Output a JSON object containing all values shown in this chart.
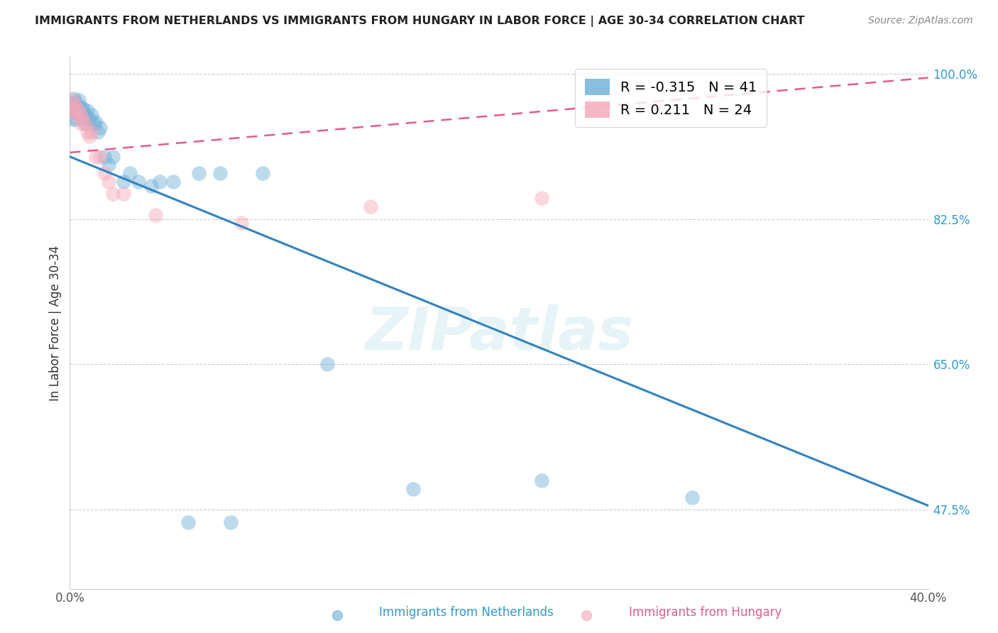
{
  "title": "IMMIGRANTS FROM NETHERLANDS VS IMMIGRANTS FROM HUNGARY IN LABOR FORCE | AGE 30-34 CORRELATION CHART",
  "source": "Source: ZipAtlas.com",
  "xlabel_bottom": "Immigrants from Netherlands",
  "xlabel_bottom2": "Immigrants from Hungary",
  "ylabel": "In Labor Force | Age 30-34",
  "xlim": [
    0.0,
    0.4
  ],
  "ylim": [
    0.38,
    1.02
  ],
  "xticks": [
    0.0,
    0.4
  ],
  "xtick_labels": [
    "0.0%",
    "40.0%"
  ],
  "ytick_positions": [
    0.475,
    0.65,
    0.825,
    1.0
  ],
  "ytick_labels": [
    "47.5%",
    "65.0%",
    "82.5%",
    "100.0%"
  ],
  "legend_R_blue": "-0.315",
  "legend_N_blue": "41",
  "legend_R_pink": " 0.211",
  "legend_N_pink": "24",
  "blue_color": "#6baed6",
  "pink_color": "#f4a7b9",
  "blue_line_color": "#3182bd",
  "pink_line_color": "#e05c8a",
  "watermark": "ZIPatlas",
  "background_color": "#ffffff",
  "blue_scatter_x": [
    0.001,
    0.001,
    0.001,
    0.002,
    0.002,
    0.003,
    0.003,
    0.003,
    0.004,
    0.004,
    0.005,
    0.005,
    0.006,
    0.006,
    0.007,
    0.007,
    0.008,
    0.009,
    0.01,
    0.011,
    0.012,
    0.013,
    0.014,
    0.016,
    0.018,
    0.02,
    0.025,
    0.028,
    0.032,
    0.038,
    0.042,
    0.048,
    0.06,
    0.07,
    0.09,
    0.12,
    0.16,
    0.22,
    0.29,
    0.055,
    0.075
  ],
  "blue_scatter_y": [
    0.965,
    0.955,
    0.945,
    0.97,
    0.96,
    0.965,
    0.955,
    0.945,
    0.968,
    0.958,
    0.96,
    0.95,
    0.958,
    0.948,
    0.95,
    0.94,
    0.955,
    0.945,
    0.95,
    0.94,
    0.942,
    0.93,
    0.935,
    0.9,
    0.89,
    0.9,
    0.87,
    0.88,
    0.87,
    0.865,
    0.87,
    0.87,
    0.88,
    0.88,
    0.88,
    0.65,
    0.5,
    0.51,
    0.49,
    0.46,
    0.46
  ],
  "pink_scatter_x": [
    0.001,
    0.001,
    0.002,
    0.002,
    0.003,
    0.003,
    0.004,
    0.005,
    0.005,
    0.006,
    0.007,
    0.008,
    0.009,
    0.01,
    0.012,
    0.014,
    0.016,
    0.018,
    0.02,
    0.025,
    0.04,
    0.08,
    0.14,
    0.22
  ],
  "pink_scatter_y": [
    0.968,
    0.958,
    0.965,
    0.955,
    0.96,
    0.95,
    0.955,
    0.95,
    0.94,
    0.945,
    0.94,
    0.93,
    0.925,
    0.93,
    0.9,
    0.9,
    0.88,
    0.87,
    0.855,
    0.855,
    0.83,
    0.82,
    0.84,
    0.85
  ],
  "blue_line_x": [
    0.0,
    0.4
  ],
  "blue_line_y": [
    0.9,
    0.48
  ],
  "pink_line_x": [
    0.0,
    0.4
  ],
  "pink_line_y": [
    0.905,
    0.995
  ],
  "pink_line_dashes": [
    6,
    4
  ]
}
